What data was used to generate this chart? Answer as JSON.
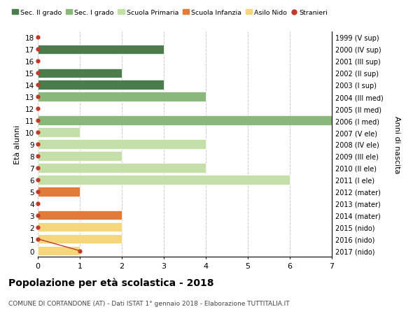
{
  "ages": [
    18,
    17,
    16,
    15,
    14,
    13,
    12,
    11,
    10,
    9,
    8,
    7,
    6,
    5,
    4,
    3,
    2,
    1,
    0
  ],
  "right_labels": [
    "1999 (V sup)",
    "2000 (IV sup)",
    "2001 (III sup)",
    "2002 (II sup)",
    "2003 (I sup)",
    "2004 (III med)",
    "2005 (II med)",
    "2006 (I med)",
    "2007 (V ele)",
    "2008 (IV ele)",
    "2009 (III ele)",
    "2010 (II ele)",
    "2011 (I ele)",
    "2012 (mater)",
    "2013 (mater)",
    "2014 (mater)",
    "2015 (nido)",
    "2016 (nido)",
    "2017 (nido)"
  ],
  "bar_values": [
    0,
    3,
    0,
    2,
    3,
    4,
    0,
    7,
    1,
    4,
    2,
    4,
    6,
    1,
    0,
    2,
    2,
    2,
    1
  ],
  "bar_colors": [
    "#4a7c4e",
    "#4a7c4e",
    "#4a7c4e",
    "#4a7c4e",
    "#4a7c4e",
    "#8ab87a",
    "#8ab87a",
    "#8ab87a",
    "#c5dfa8",
    "#c5dfa8",
    "#c5dfa8",
    "#c5dfa8",
    "#c5dfa8",
    "#e07b39",
    "#e07b39",
    "#e07b39",
    "#f5d67a",
    "#f5d67a",
    "#f5d67a"
  ],
  "legend_labels": [
    "Sec. II grado",
    "Sec. I grado",
    "Scuola Primaria",
    "Scuola Infanzia",
    "Asilo Nido",
    "Stranieri"
  ],
  "legend_colors": [
    "#4a7c4e",
    "#8ab87a",
    "#c5dfa8",
    "#e07b39",
    "#f5d67a",
    "#c0392b"
  ],
  "ylabel_left": "Età alunni",
  "ylabel_right": "Anni di nascita",
  "title": "Popolazione per età scolastica - 2018",
  "subtitle": "COMUNE DI CORTANDONE (AT) - Dati ISTAT 1° gennaio 2018 - Elaborazione TUTTITALIA.IT",
  "xlim": [
    0,
    7
  ],
  "bg_color": "#ffffff",
  "grid_color": "#cccccc",
  "stranieri_dot_color": "#c0392b",
  "stranieri_line_color": "#c0392b"
}
